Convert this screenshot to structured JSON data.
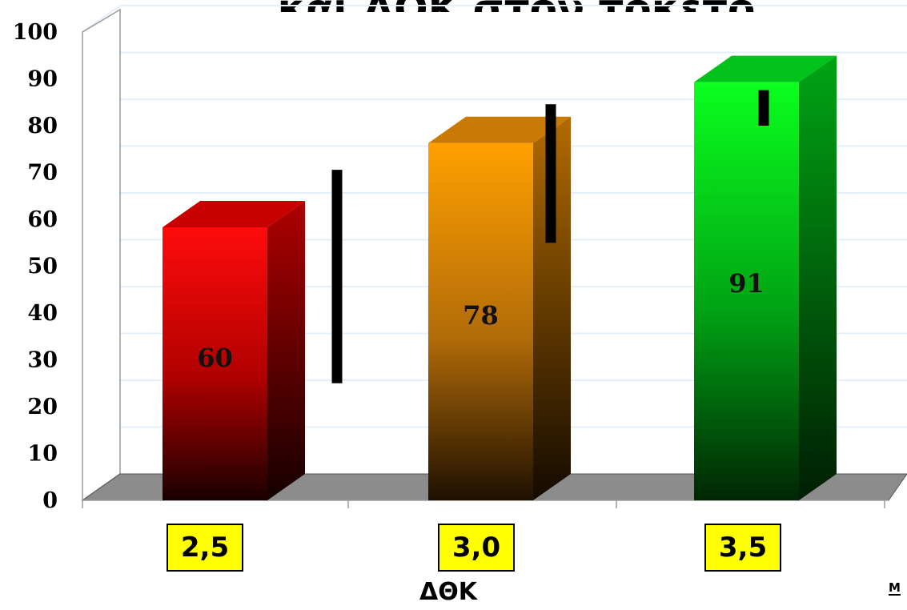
{
  "chart_data": {
    "type": "bar",
    "title": "και ΔΟΚ στον τοκετό",
    "xlabel": "ΔΘΚ",
    "ylabel": "",
    "categories": [
      "2,5",
      "3,0",
      "3,5"
    ],
    "values": [
      60,
      78,
      91
    ],
    "value_labels": [
      "60",
      "78",
      "91"
    ],
    "error_bars": [
      {
        "low": 25,
        "high": 74
      },
      {
        "low": 55,
        "high": 88
      },
      {
        "low": 80,
        "high": 91
      }
    ],
    "ylim": [
      0,
      100
    ],
    "yticks": [
      "0",
      "10",
      "20",
      "30",
      "40",
      "50",
      "60",
      "70",
      "80",
      "90",
      "100"
    ],
    "grid": true,
    "legend": "none",
    "colors": {
      "bars": [
        "#ff0000",
        "#ff9900",
        "#00ff22"
      ],
      "category_box": "#ffff00",
      "grid": "#e3f0fb",
      "floor": "#8c8c8c"
    }
  },
  "corner_mark": "M"
}
